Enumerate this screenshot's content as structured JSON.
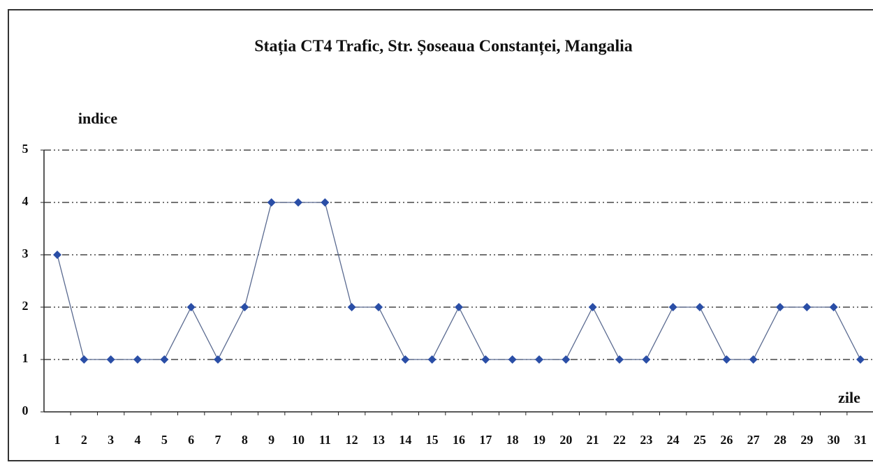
{
  "chart_data": {
    "type": "line",
    "title": "Stația CT4 Trafic, Str. Șoseaua Constanței, Mangalia",
    "y_label": "indice",
    "x_label": "zile",
    "categories": [
      "1",
      "2",
      "3",
      "4",
      "5",
      "6",
      "7",
      "8",
      "9",
      "10",
      "11",
      "12",
      "13",
      "14",
      "15",
      "16",
      "17",
      "18",
      "19",
      "20",
      "21",
      "22",
      "23",
      "24",
      "25",
      "26",
      "27",
      "28",
      "29",
      "30",
      "31"
    ],
    "series": [
      {
        "name": "indice",
        "color": "#2a4ea6",
        "values": [
          3,
          1,
          1,
          1,
          1,
          2,
          1,
          2,
          4,
          4,
          4,
          2,
          2,
          1,
          1,
          2,
          1,
          1,
          1,
          1,
          2,
          1,
          1,
          2,
          2,
          1,
          1,
          2,
          2,
          2,
          1
        ]
      }
    ],
    "ylim": [
      0,
      5
    ],
    "yticks": [
      0,
      1,
      2,
      3,
      4,
      5
    ],
    "grid": true
  }
}
